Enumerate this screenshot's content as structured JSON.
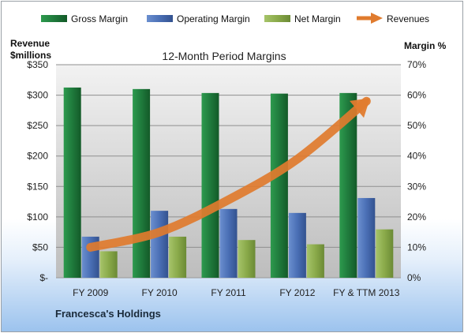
{
  "chart_data": {
    "type": "bar",
    "title": "12-Month Period Margins",
    "categories": [
      "FY 2009",
      "FY 2010",
      "FY 2011",
      "FY 2012",
      "FY & TTM 2013"
    ],
    "series": [
      {
        "name": "Gross Margin",
        "axis": "right",
        "color": "#1f7a3c",
        "values": [
          62.5,
          62.0,
          60.7,
          60.5,
          60.7
        ]
      },
      {
        "name": "Operating Margin",
        "axis": "right",
        "color": "#4a6fb5",
        "values": [
          13.5,
          22.0,
          22.6,
          21.3,
          26.2
        ]
      },
      {
        "name": "Net Margin",
        "axis": "right",
        "color": "#8aaa4a",
        "values": [
          8.7,
          13.5,
          12.4,
          11.0,
          15.9
        ]
      },
      {
        "name": "Revenues",
        "axis": "left",
        "type": "line-arrow",
        "color": "#e07b2e",
        "values": [
          50,
          75,
          128,
          195,
          290
        ]
      }
    ],
    "left_axis": {
      "label_line1": "Revenue",
      "label_line2": "$millions",
      "range": [
        0,
        350
      ],
      "ticks": [
        "$-",
        "$50",
        "$100",
        "$150",
        "$200",
        "$250",
        "$300",
        "$350"
      ]
    },
    "right_axis": {
      "label": "Margin %",
      "range": [
        0,
        70
      ],
      "ticks": [
        "0%",
        "10%",
        "20%",
        "30%",
        "40%",
        "50%",
        "60%",
        "70%"
      ]
    },
    "grid": true,
    "legend_position": "top",
    "footnote": "Francesca's Holdings"
  }
}
